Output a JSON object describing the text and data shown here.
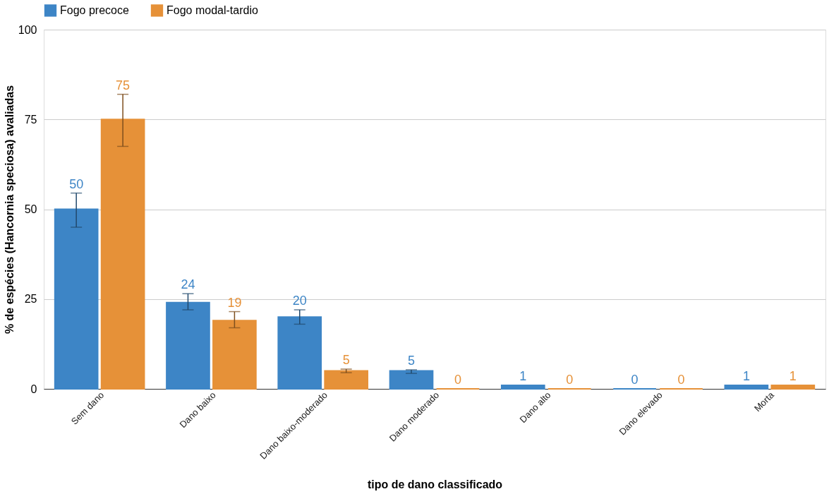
{
  "chart_data": {
    "type": "bar",
    "xlabel": "tipo de dano classificado",
    "ylabel": "% de espécies (Hancornia speciosa) avaliadas",
    "categories": [
      "Sem dano",
      "Dano baixo",
      "Dano baixo-moderado",
      "Dano moderado",
      "Dano alto",
      "Dano elevado",
      "Morta"
    ],
    "series": [
      {
        "name": "Fogo precoce",
        "color": "#3d85c6",
        "values": [
          50,
          24,
          20,
          5,
          1,
          0,
          1
        ],
        "errors": [
          [
            45,
            54.5
          ],
          [
            22,
            26.5
          ],
          [
            18,
            22
          ],
          [
            4.3,
            5.3
          ],
          null,
          null,
          null
        ]
      },
      {
        "name": "Fogo modal-tardio",
        "color": "#e69138",
        "values": [
          75,
          19,
          5,
          0,
          0,
          0,
          1
        ],
        "errors": [
          [
            67.5,
            82
          ],
          [
            17,
            21.5
          ],
          [
            4.5,
            5.5
          ],
          null,
          null,
          null,
          null
        ]
      }
    ],
    "ylim": [
      0,
      100
    ],
    "yticks": [
      0,
      25,
      50,
      75,
      100
    ],
    "grid": "y",
    "legend": "top",
    "data_labels": true
  }
}
